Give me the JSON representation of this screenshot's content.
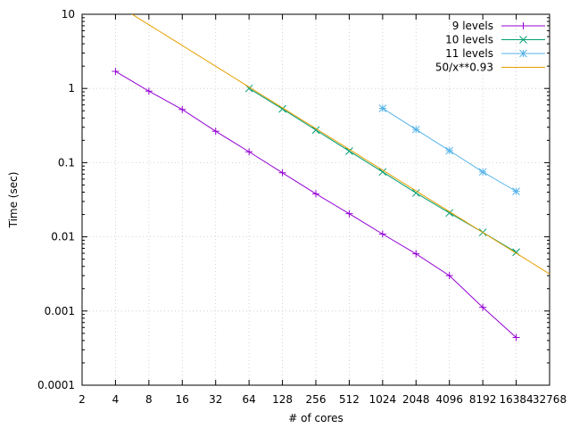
{
  "chart_data": {
    "type": "line",
    "xlabel": "# of cores",
    "ylabel": "Time (sec)",
    "xscale": "log2",
    "yscale": "log10",
    "xlim": [
      2,
      32768
    ],
    "ylim": [
      0.0001,
      10
    ],
    "x_ticks": [
      2,
      4,
      8,
      16,
      32,
      64,
      128,
      256,
      512,
      1024,
      2048,
      4096,
      8192,
      16384,
      32768
    ],
    "x_tick_labels": [
      "2",
      "4",
      "8",
      "16",
      "32",
      "64",
      "128",
      "256",
      "512",
      "1024",
      "2048",
      "4096",
      "8192",
      "16384",
      "32768"
    ],
    "y_ticks": [
      0.0001,
      0.001,
      0.01,
      0.1,
      1,
      10
    ],
    "y_tick_labels": [
      "0.0001",
      "0.001",
      "0.01",
      "0.1",
      "1",
      "10"
    ],
    "grid": true,
    "legend_position": "top-right",
    "series": [
      {
        "name": "9 levels",
        "color": "#9400d3",
        "marker": "plus",
        "x": [
          4,
          8,
          16,
          32,
          64,
          128,
          256,
          512,
          1024,
          2048,
          4096,
          8192,
          16384
        ],
        "y": [
          1.7,
          0.92,
          0.52,
          0.265,
          0.14,
          0.073,
          0.038,
          0.0205,
          0.0109,
          0.0059,
          0.003,
          0.00112,
          0.00044
        ]
      },
      {
        "name": "10 levels",
        "color": "#009e73",
        "marker": "cross",
        "x": [
          64,
          128,
          256,
          512,
          1024,
          2048,
          4096,
          8192,
          16384
        ],
        "y": [
          1.0,
          0.53,
          0.275,
          0.143,
          0.075,
          0.039,
          0.021,
          0.0115,
          0.0062
        ]
      },
      {
        "name": "11 levels",
        "color": "#56b4e9",
        "marker": "star",
        "x": [
          1024,
          2048,
          4096,
          8192,
          16384
        ],
        "y": [
          0.54,
          0.28,
          0.145,
          0.075,
          0.041
        ]
      },
      {
        "name": "50/x**0.93",
        "color": "#e69f00",
        "marker": "none",
        "function": {
          "a": 50,
          "b": 0.93
        },
        "x_range": [
          2,
          32768
        ]
      }
    ]
  }
}
